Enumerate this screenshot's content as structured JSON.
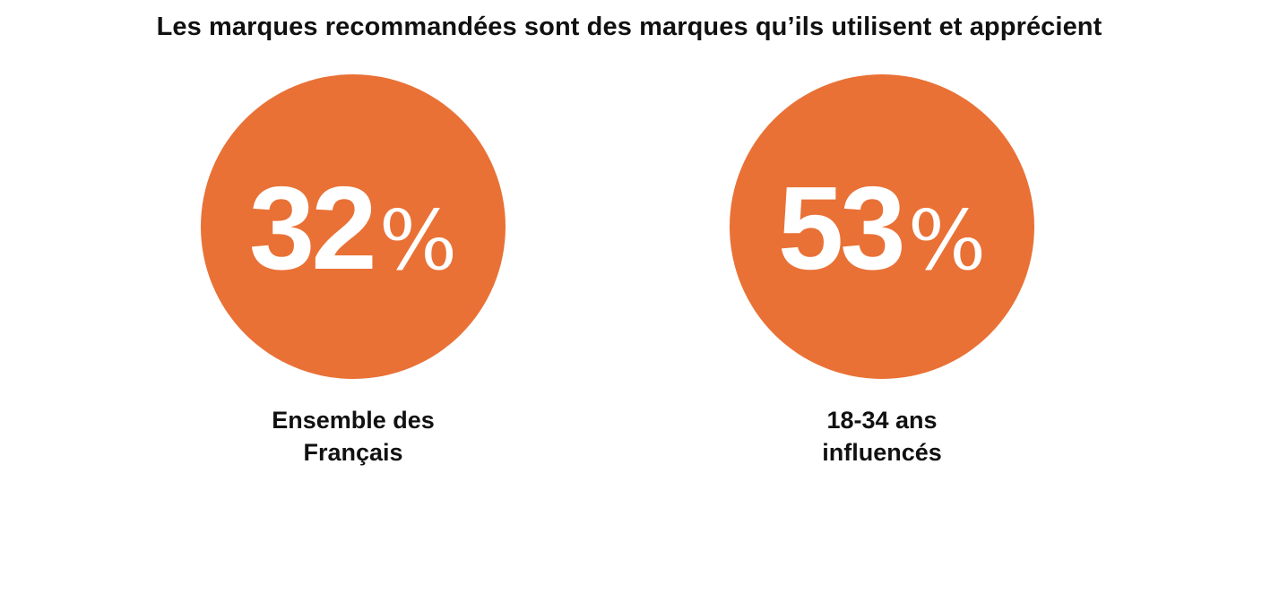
{
  "colors": {
    "accent": "#E97136",
    "text": "#111111",
    "value_text": "#FFFFFF"
  },
  "chart_data": {
    "type": "bar",
    "title": "Les marques recommandées sont des marques qu’ils utilisent et apprécient",
    "unit": "%",
    "categories": [
      "Ensemble des Français",
      "18-34 ans influencés"
    ],
    "values": [
      32,
      53
    ],
    "items": [
      {
        "value": 32,
        "value_label": "32",
        "unit_label": "%",
        "label_lines": [
          "Ensemble des",
          "Français"
        ]
      },
      {
        "value": 53,
        "value_label": "53",
        "unit_label": "%",
        "label_lines": [
          "18-34 ans",
          "influencés"
        ]
      }
    ]
  }
}
